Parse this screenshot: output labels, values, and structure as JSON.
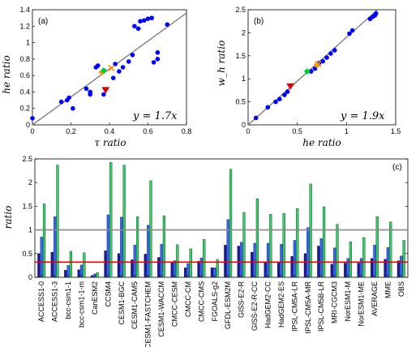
{
  "chart_data": [
    {
      "panel_label": "(a)",
      "type": "scatter",
      "xlabel": "τ  ratio",
      "ylabel": "he  ratio",
      "xlim": [
        0,
        0.8
      ],
      "ylim": [
        0,
        1.4
      ],
      "xticks": [
        "0",
        "0.2",
        "0.4",
        "0.6",
        "0.8"
      ],
      "yticks": [
        "0",
        "0.2",
        "0.4",
        "0.6",
        "0.8",
        "1",
        "1.2",
        "1.4"
      ],
      "fit_label": "y = 1.7x",
      "fit_slope": 1.7,
      "points": [
        [
          0.0,
          0.08
        ],
        [
          0.15,
          0.28
        ],
        [
          0.18,
          0.3
        ],
        [
          0.19,
          0.33
        ],
        [
          0.21,
          0.2
        ],
        [
          0.28,
          0.44
        ],
        [
          0.3,
          0.4
        ],
        [
          0.3,
          0.37
        ],
        [
          0.33,
          0.7
        ],
        [
          0.34,
          0.72
        ],
        [
          0.37,
          0.37
        ],
        [
          0.42,
          0.57
        ],
        [
          0.43,
          0.74
        ],
        [
          0.45,
          0.65
        ],
        [
          0.47,
          0.7
        ],
        [
          0.5,
          0.77
        ],
        [
          0.52,
          0.85
        ],
        [
          0.53,
          1.2
        ],
        [
          0.55,
          1.17
        ],
        [
          0.56,
          1.26
        ],
        [
          0.58,
          1.27
        ],
        [
          0.6,
          1.29
        ],
        [
          0.62,
          1.3
        ],
        [
          0.63,
          0.76
        ],
        [
          0.65,
          0.88
        ],
        [
          0.65,
          0.8
        ],
        [
          0.7,
          1.22
        ]
      ],
      "markers": {
        "average": [
          0.36,
          0.64
        ],
        "mme": [
          0.37,
          0.66
        ],
        "obs": [
          0.38,
          0.42
        ],
        "cross": [
          0.41,
          0.69
        ]
      },
      "colors": {
        "points": "#0000ff",
        "fit": "#808080",
        "average": "#ff9900",
        "mme": "#00cc33",
        "obs": "#dd0000"
      }
    },
    {
      "panel_label": "(b)",
      "type": "scatter",
      "xlabel": "he  ratio",
      "ylabel": "w_h  ratio",
      "xlim": [
        0,
        1.5
      ],
      "ylim": [
        0,
        2.5
      ],
      "xticks": [
        "0",
        "0.5",
        "1",
        "1.5"
      ],
      "yticks": [
        "0",
        "0.5",
        "1",
        "1.5",
        "2",
        "2.5"
      ],
      "fit_label": "y = 1.9x",
      "fit_slope": 1.9,
      "points": [
        [
          0.08,
          0.15
        ],
        [
          0.2,
          0.38
        ],
        [
          0.28,
          0.5
        ],
        [
          0.32,
          0.56
        ],
        [
          0.37,
          0.65
        ],
        [
          0.4,
          0.72
        ],
        [
          0.64,
          1.16
        ],
        [
          0.68,
          1.22
        ],
        [
          0.7,
          1.3
        ],
        [
          0.72,
          1.34
        ],
        [
          0.76,
          1.38
        ],
        [
          0.8,
          1.46
        ],
        [
          0.84,
          1.55
        ],
        [
          0.88,
          1.62
        ],
        [
          1.03,
          1.98
        ],
        [
          1.06,
          2.05
        ],
        [
          1.24,
          2.3
        ],
        [
          1.27,
          2.35
        ],
        [
          1.29,
          2.38
        ],
        [
          1.3,
          2.42
        ]
      ],
      "markers": {
        "average": [
          0.7,
          1.3
        ],
        "mme": [
          0.6,
          1.16
        ],
        "obs": [
          0.43,
          0.83
        ],
        "cross": [
          0.71,
          1.32
        ]
      },
      "colors": {
        "points": "#0000ff",
        "fit": "#808080",
        "average": "#ff9900",
        "mme": "#00cc33",
        "obs": "#dd0000"
      }
    },
    {
      "panel_label": "(c)",
      "type": "bar",
      "ylabel": "ratio",
      "ylim": [
        0,
        2.5
      ],
      "yticks": [
        "0",
        "0.5",
        "1",
        "1.5",
        "2",
        "2.5"
      ],
      "categories": [
        "ACCESS1-0",
        "ACCESS1-3",
        "bcc-csm1-1",
        "bcc-csm1-1-m",
        "CanESM2",
        "CCSM4",
        "CESM1-BGC",
        "CESM1-CAM5",
        "CESM1-FASTCHEM",
        "CESM1-WACCM",
        "CMCC-CESM",
        "CMCC-CM",
        "CMCC-CMS",
        "FGOALS-g2",
        "GFDL-ESM2M",
        "GISS-E2-R",
        "GISS-E2-R-CC",
        "HadGEM2-CC",
        "HadGEM2-ES",
        "IPSL-CM5A-LR",
        "IPSL-CM5A-MR",
        "IPSL-CM5B-LR",
        "MRI-CGCM3",
        "NorESM1-M",
        "NorESM1-ME",
        "AVERAGE",
        "MME",
        "OBS"
      ],
      "series": [
        {
          "values": [
            0.5,
            0.53,
            0.15,
            0.16,
            0.04,
            0.56,
            0.5,
            0.37,
            0.49,
            0.42,
            0.33,
            0.2,
            0.34,
            0.2,
            0.68,
            0.66,
            0.53,
            0.33,
            0.33,
            0.44,
            0.5,
            0.66,
            0.28,
            0.3,
            0.3,
            0.4,
            0.38,
            0.35
          ],
          "color": "#1a1a9e"
        },
        {
          "values": [
            0.85,
            1.28,
            0.25,
            0.26,
            0.07,
            1.32,
            1.27,
            0.68,
            1.1,
            0.7,
            0.35,
            0.29,
            0.41,
            0.2,
            1.22,
            0.74,
            0.72,
            0.72,
            0.7,
            0.78,
            1.05,
            0.82,
            0.62,
            0.4,
            0.4,
            0.68,
            0.63,
            0.45
          ],
          "color": "#3366ff"
        },
        {
          "values": [
            1.55,
            2.37,
            0.55,
            0.52,
            0.1,
            2.43,
            2.37,
            1.28,
            2.04,
            1.3,
            0.69,
            0.6,
            0.8,
            0.38,
            2.28,
            1.37,
            1.66,
            1.33,
            1.35,
            1.45,
            1.97,
            1.49,
            1.12,
            0.75,
            0.84,
            1.28,
            1.17,
            0.78
          ],
          "color": "#33cc66"
        }
      ],
      "reference_lines": [
        {
          "y": 1.0,
          "color": "#888888"
        },
        {
          "y": 0.32,
          "color": "#ee0000"
        }
      ]
    }
  ]
}
